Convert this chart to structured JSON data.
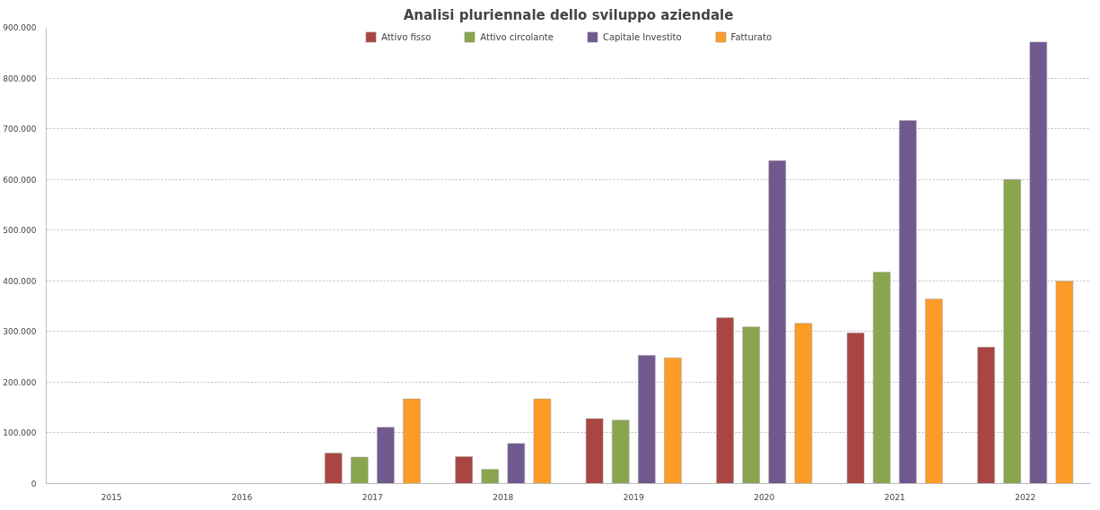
{
  "chart_data": {
    "type": "bar",
    "title": "Analisi pluriennale dello sviluppo aziendale",
    "categories": [
      "2015",
      "2016",
      "2017",
      "2018",
      "2019",
      "2020",
      "2021",
      "2022"
    ],
    "series": [
      {
        "name": "Attivo fisso",
        "color": "#a94643",
        "values": [
          null,
          null,
          60000,
          53000,
          128000,
          327000,
          297000,
          269000
        ]
      },
      {
        "name": "Attivo circolante",
        "color": "#89a54e",
        "values": [
          null,
          null,
          52000,
          28000,
          125000,
          309000,
          417000,
          600000
        ]
      },
      {
        "name": "Capitale Investito",
        "color": "#71588f",
        "values": [
          null,
          null,
          111000,
          79000,
          253000,
          637000,
          716000,
          871000
        ]
      },
      {
        "name": "Fatturato",
        "color": "#fd9b27",
        "values": [
          null,
          null,
          167000,
          167000,
          248000,
          316000,
          364000,
          399000
        ]
      }
    ],
    "ylim": [
      0,
      900000
    ],
    "yticks": [
      0,
      {
        "value": 100000,
        "label": "100.000"
      },
      {
        "value": 200000,
        "label": "200.000"
      },
      {
        "value": 300000,
        "label": "300.000"
      },
      {
        "value": 400000,
        "label": "400.000"
      },
      {
        "value": 500000,
        "label": "500.000"
      },
      {
        "value": 600000,
        "label": "600.000"
      },
      {
        "value": 700000,
        "label": "700.000"
      },
      {
        "value": 800000,
        "label": "800.000"
      },
      {
        "value": 900000,
        "label": "900.000"
      }
    ],
    "grid": "y",
    "legend": "top"
  }
}
